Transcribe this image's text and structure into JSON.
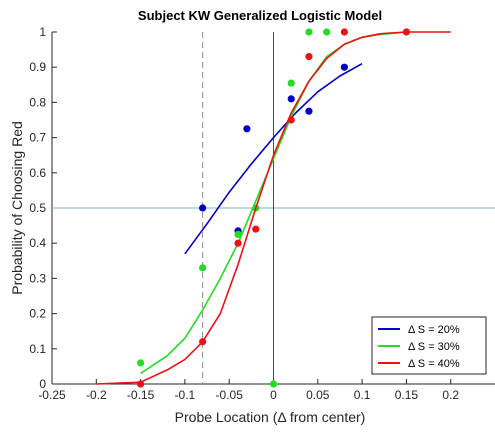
{
  "chart_data": {
    "type": "line",
    "title": "Subject KW Generalized Logistic Model",
    "xlabel": "Probe Location (Δ from center)",
    "ylabel": "Probability of Choosing Red",
    "xlim": [
      -0.25,
      0.25
    ],
    "ylim": [
      0,
      1
    ],
    "xticks": [
      "-0.25",
      "-0.2",
      "-0.15",
      "-0.1",
      "-0.05",
      "0",
      "0.05",
      "0.1",
      "0.15",
      "0.2"
    ],
    "xtick_values": [
      -0.25,
      -0.2,
      -0.15,
      -0.1,
      -0.05,
      0,
      0.05,
      0.1,
      0.15,
      0.2
    ],
    "yticks": [
      "0",
      "0.1",
      "0.2",
      "0.3",
      "0.4",
      "0.5",
      "0.6",
      "0.7",
      "0.8",
      "0.9",
      "1"
    ],
    "ytick_values": [
      0,
      0.1,
      0.2,
      0.3,
      0.4,
      0.5,
      0.6,
      0.7,
      0.8,
      0.9,
      1
    ],
    "grid": false,
    "legend_position": "bottom-right",
    "reference_lines": [
      {
        "orientation": "horizontal",
        "value": 0.5,
        "color": "#7fb6c8",
        "style": "solid"
      },
      {
        "orientation": "vertical",
        "value": -0.08,
        "color": "#8c8c8c",
        "style": "dashed"
      },
      {
        "orientation": "vertical",
        "value": 0,
        "color": "#8b2f3c",
        "style": "solid"
      }
    ],
    "series": [
      {
        "name": "Δ S = 20%",
        "color": "#0000cc",
        "curve": {
          "x": [
            -0.1,
            -0.075,
            -0.05,
            -0.025,
            0,
            0.025,
            0.05,
            0.075,
            0.1
          ],
          "y": [
            0.37,
            0.455,
            0.545,
            0.625,
            0.7,
            0.77,
            0.83,
            0.875,
            0.91
          ]
        },
        "points": {
          "x": [
            -0.08,
            -0.04,
            -0.03,
            0.02,
            0.04,
            0.08
          ],
          "y": [
            0.5,
            0.435,
            0.725,
            0.81,
            0.775,
            0.9
          ]
        }
      },
      {
        "name": "Δ S = 30%",
        "color": "#22dd22",
        "curve": {
          "x": [
            -0.15,
            -0.12,
            -0.1,
            -0.08,
            -0.06,
            -0.04,
            -0.02,
            0,
            0.02,
            0.04,
            0.06,
            0.08,
            0.1,
            0.12,
            0.15
          ],
          "y": [
            0.03,
            0.08,
            0.13,
            0.21,
            0.3,
            0.4,
            0.52,
            0.64,
            0.76,
            0.86,
            0.93,
            0.965,
            0.985,
            0.993,
            1.0
          ]
        },
        "points": {
          "x": [
            -0.15,
            -0.08,
            -0.04,
            -0.02,
            0,
            0.02,
            0.04,
            0.06
          ],
          "y": [
            0.06,
            0.33,
            0.425,
            0.5,
            0,
            0.855,
            1.0,
            1.0
          ]
        }
      },
      {
        "name": "Δ S = 40%",
        "color": "#ee1111",
        "curve": {
          "x": [
            -0.2,
            -0.15,
            -0.12,
            -0.1,
            -0.08,
            -0.06,
            -0.04,
            -0.02,
            0,
            0.02,
            0.04,
            0.06,
            0.08,
            0.1,
            0.12,
            0.15,
            0.2
          ],
          "y": [
            0.0,
            0.005,
            0.04,
            0.07,
            0.12,
            0.2,
            0.34,
            0.5,
            0.65,
            0.77,
            0.86,
            0.925,
            0.965,
            0.985,
            0.995,
            1.0,
            1.0
          ]
        },
        "points": {
          "x": [
            -0.15,
            -0.08,
            -0.04,
            -0.02,
            0.02,
            0.04,
            0.08,
            0.15
          ],
          "y": [
            0,
            0.12,
            0.4,
            0.44,
            0.75,
            0.93,
            1.0,
            1.0
          ]
        }
      }
    ]
  }
}
